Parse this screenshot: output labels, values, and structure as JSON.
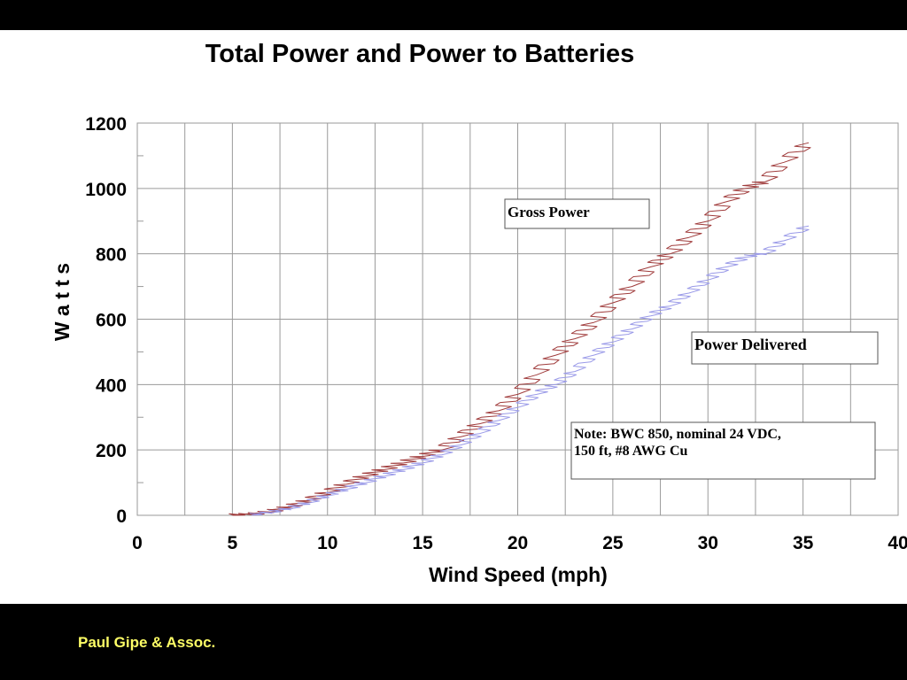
{
  "footer": {
    "text": "Paul Gipe & Assoc.",
    "color": "#ffff66"
  },
  "colors": {
    "gross": "#a03c3c",
    "delivered": "#9a9ae8",
    "grid": "#9a9a9a",
    "band": "#000000"
  },
  "chart_data": {
    "type": "line",
    "title": "Total Power and Power to Batteries",
    "xlabel": "Wind Speed (mph)",
    "ylabel": "W a t t s",
    "xlim": [
      0,
      40
    ],
    "ylim": [
      0,
      1200
    ],
    "x_ticks": [
      0,
      5,
      10,
      15,
      20,
      25,
      30,
      35,
      40
    ],
    "y_ticks": [
      0,
      200,
      400,
      600,
      800,
      1000,
      1200
    ],
    "grid": true,
    "series": [
      {
        "name": "Gross Power",
        "color": "#a03c3c",
        "points": [
          [
            5,
            0
          ],
          [
            6,
            2
          ],
          [
            7,
            10
          ],
          [
            8,
            25
          ],
          [
            9,
            45
          ],
          [
            10,
            70
          ],
          [
            11,
            95
          ],
          [
            12,
            120
          ],
          [
            13,
            140
          ],
          [
            14,
            160
          ],
          [
            15,
            180
          ],
          [
            16,
            200
          ],
          [
            17,
            240
          ],
          [
            18,
            280
          ],
          [
            19,
            320
          ],
          [
            20,
            370
          ],
          [
            21,
            430
          ],
          [
            22,
            490
          ],
          [
            23,
            540
          ],
          [
            24,
            590
          ],
          [
            25,
            650
          ],
          [
            26,
            700
          ],
          [
            27,
            760
          ],
          [
            28,
            800
          ],
          [
            29,
            850
          ],
          [
            30,
            900
          ],
          [
            31,
            960
          ],
          [
            32,
            1000
          ],
          [
            33,
            1020
          ],
          [
            34,
            1080
          ],
          [
            35.3,
            1140
          ]
        ]
      },
      {
        "name": "Power Delivered",
        "color": "#9a9ae8",
        "points": [
          [
            6,
            0
          ],
          [
            7,
            8
          ],
          [
            8,
            20
          ],
          [
            9,
            38
          ],
          [
            10,
            60
          ],
          [
            11,
            80
          ],
          [
            12,
            100
          ],
          [
            13,
            120
          ],
          [
            14,
            140
          ],
          [
            15,
            160
          ],
          [
            16,
            185
          ],
          [
            17,
            215
          ],
          [
            18,
            250
          ],
          [
            19,
            290
          ],
          [
            20,
            330
          ],
          [
            21,
            370
          ],
          [
            22,
            400
          ],
          [
            23,
            440
          ],
          [
            24,
            490
          ],
          [
            25,
            530
          ],
          [
            26,
            570
          ],
          [
            27,
            610
          ],
          [
            28,
            640
          ],
          [
            29,
            680
          ],
          [
            30,
            720
          ],
          [
            31,
            760
          ],
          [
            32,
            790
          ],
          [
            33,
            800
          ],
          [
            34,
            840
          ],
          [
            35.3,
            885
          ]
        ]
      }
    ],
    "annotations": [
      {
        "id": "gross",
        "text": "Gross Power"
      },
      {
        "id": "delivered",
        "text": "Power Delivered"
      },
      {
        "id": "note",
        "lines": [
          "Note: BWC 850, nominal 24 VDC,",
          "150 ft, #8 AWG Cu"
        ]
      }
    ]
  }
}
